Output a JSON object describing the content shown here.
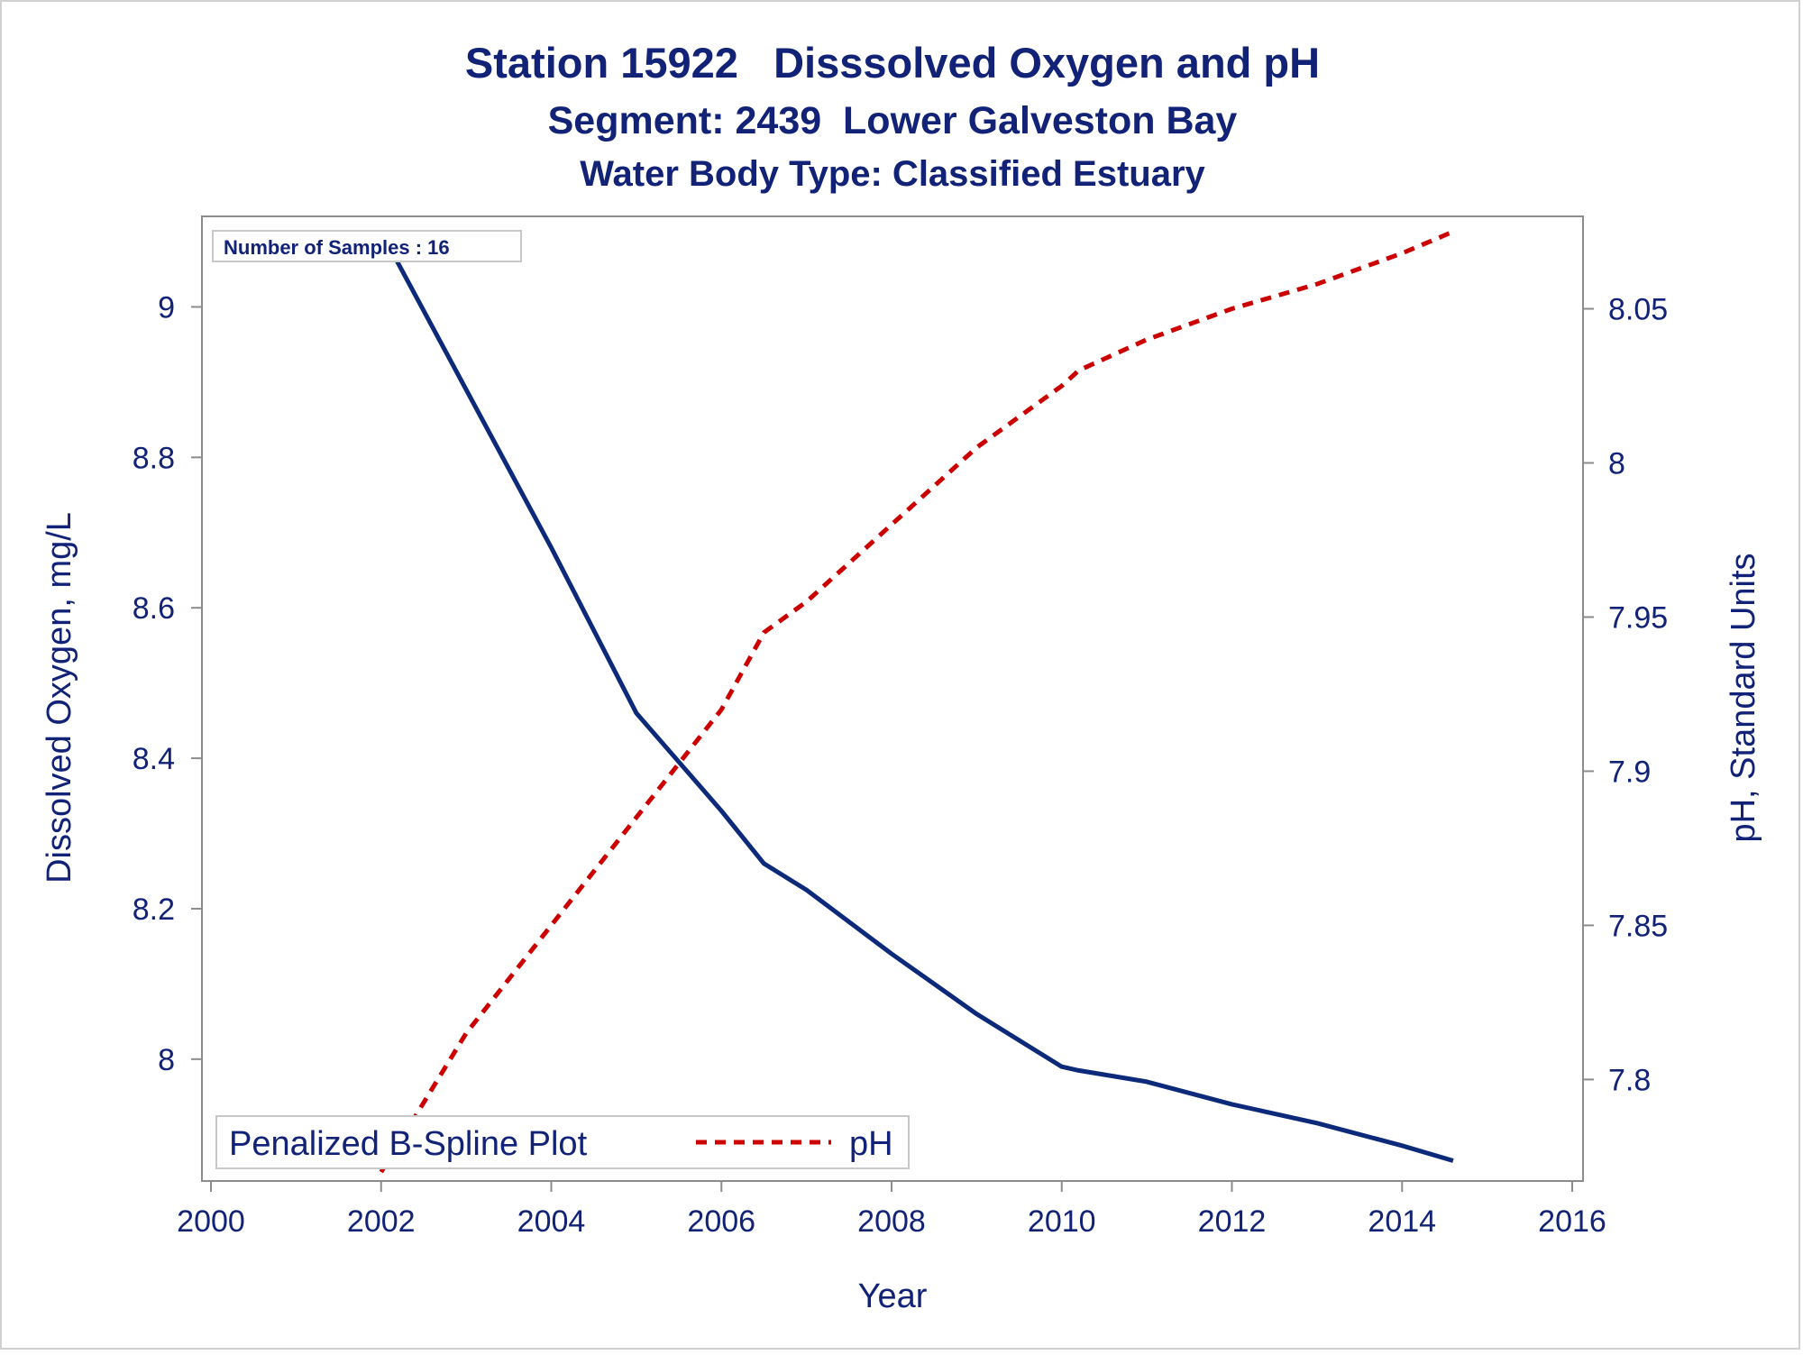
{
  "titles": {
    "line1": "Station 15922   Disssolved Oxygen and pH",
    "line2": "Segment: 2439  Lower Galveston Bay",
    "line3": "Water Body Type: Classified Estuary"
  },
  "inset": {
    "samples_label": "Number of Samples : 16"
  },
  "legend": {
    "title": "Penalized B-Spline Plot",
    "entry_ph": "pH"
  },
  "colors": {
    "text": "#112277",
    "do_line": "#0d2a7a",
    "ph_line": "#cc0000",
    "axis": "#8c8c8c"
  },
  "chart_data": {
    "type": "line",
    "title": "Station 15922   Disssolved Oxygen and pH",
    "subtitle": [
      "Segment: 2439  Lower Galveston Bay",
      "Water Body Type: Classified Estuary"
    ],
    "xlabel": "Year",
    "ylabel": "Dissolved Oxygen, mg/L",
    "y2label": "pH, Standard Units",
    "xlim": [
      2000,
      2016
    ],
    "ylim": [
      7.85,
      9.1
    ],
    "y2lim": [
      7.77,
      8.075
    ],
    "x_ticks": [
      2000,
      2002,
      2004,
      2006,
      2008,
      2010,
      2012,
      2014,
      2016
    ],
    "y_ticks": [
      8.0,
      8.2,
      8.4,
      8.6,
      8.8,
      9.0
    ],
    "y_tick_labels": [
      "8",
      "8.2",
      "8.4",
      "8.6",
      "8.8",
      "9"
    ],
    "y2_ticks": [
      7.8,
      7.85,
      7.9,
      7.95,
      8.0,
      8.05
    ],
    "y2_tick_labels": [
      "7.8",
      "7.85",
      "7.9",
      "7.95",
      "8",
      "8.05"
    ],
    "grid": false,
    "legend_position": "bottom-left",
    "series": [
      {
        "name": "Dissolved Oxygen",
        "axis": "left",
        "style": "solid",
        "x": [
          2002.0,
          2003.0,
          2004.0,
          2005.0,
          2006.0,
          2006.5,
          2007.0,
          2008.0,
          2009.0,
          2010.0,
          2010.2,
          2011.0,
          2012.0,
          2013.0,
          2014.0,
          2014.6
        ],
        "y": [
          9.1,
          8.89,
          8.68,
          8.46,
          8.33,
          8.26,
          8.225,
          8.14,
          8.06,
          7.99,
          7.985,
          7.97,
          7.94,
          7.915,
          7.885,
          7.865
        ]
      },
      {
        "name": "pH",
        "axis": "right",
        "style": "dashed",
        "x": [
          2002.0,
          2003.0,
          2004.0,
          2005.0,
          2006.0,
          2006.5,
          2007.0,
          2008.0,
          2009.0,
          2010.0,
          2010.2,
          2011.0,
          2012.0,
          2013.0,
          2014.0,
          2014.6
        ],
        "y": [
          7.77,
          7.815,
          7.85,
          7.885,
          7.92,
          7.945,
          7.955,
          7.98,
          8.005,
          8.025,
          8.03,
          8.04,
          8.05,
          8.058,
          8.068,
          8.075
        ]
      }
    ]
  }
}
